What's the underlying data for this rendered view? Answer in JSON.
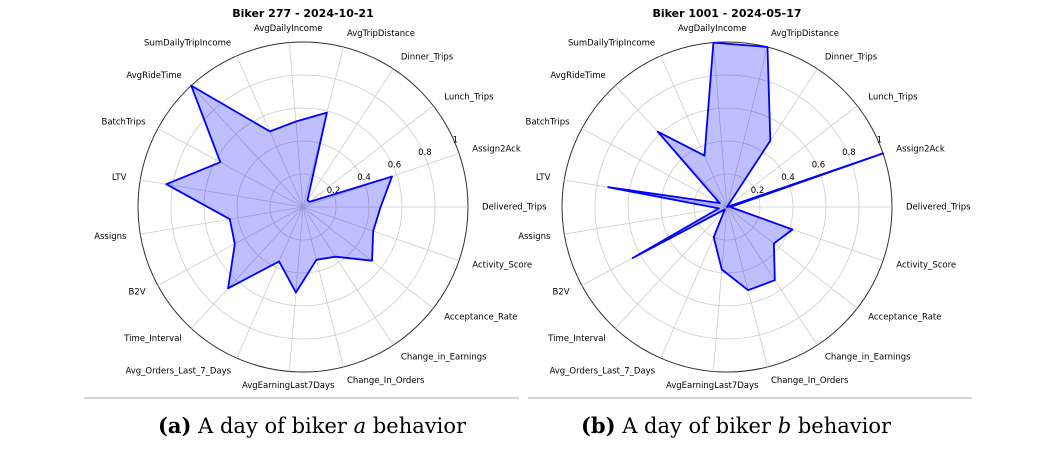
{
  "chart_data": [
    {
      "type": "radar",
      "title": "Biker 277 - 2024-10-21",
      "categories": [
        "Delivered_Trips",
        "Assign2Ack",
        "Lunch_Trips",
        "Dinner_Trips",
        "AvgTripDistance",
        "AvgDailyIncome",
        "SumDailyTripIncome",
        "AvgRideTime",
        "BatchTrips",
        "LTV",
        "Assigns",
        "B2V",
        "Time_Interval",
        "Avg_Orders_Last_7_Days",
        "AvgEarningLast7Days",
        "Change_In_Orders",
        "Change_in_Earnings",
        "Acceptance_Rate",
        "Activity_Score"
      ],
      "values": [
        0.47,
        0.57,
        0.05,
        0.05,
        0.59,
        0.52,
        0.5,
        1.0,
        0.57,
        0.84,
        0.45,
        0.47,
        0.67,
        0.36,
        0.52,
        0.33,
        0.36,
        0.53,
        0.45
      ],
      "color": "#0000ff",
      "rlim": [
        0,
        1
      ],
      "rticks": [
        0.2,
        0.4,
        0.6,
        0.8,
        1.0
      ],
      "grid": true
    },
    {
      "type": "radar",
      "title": "Biker 1001 - 2024-05-17",
      "categories": [
        "Delivered_Trips",
        "Assign2Ack",
        "Lunch_Trips",
        "Dinner_Trips",
        "AvgTripDistance",
        "AvgDailyIncome",
        "SumDailyTripIncome",
        "AvgRideTime",
        "BatchTrips",
        "LTV",
        "Assigns",
        "B2V",
        "Time_Interval",
        "Avg_Orders_Last_7_Days",
        "AvgEarningLast7Days",
        "Change_In_Orders",
        "Change_in_Earnings",
        "Acceptance_Rate",
        "Activity_Score"
      ],
      "values": [
        0.02,
        1.0,
        0.0,
        0.48,
        1.0,
        1.0,
        0.34,
        0.62,
        0.05,
        0.73,
        0.05,
        0.65,
        0.02,
        0.2,
        0.38,
        0.52,
        0.53,
        0.36,
        0.42
      ],
      "color": "#0000ff",
      "rlim": [
        0,
        1
      ],
      "rticks": [
        0.2,
        0.4,
        0.6,
        0.8,
        1.0
      ],
      "grid": true
    }
  ],
  "captions": [
    {
      "label": "(a)",
      "before": "A day of biker",
      "var": "a",
      "after": "behavior"
    },
    {
      "label": "(b)",
      "before": "A day of biker",
      "var": "b",
      "after": "behavior"
    }
  ]
}
